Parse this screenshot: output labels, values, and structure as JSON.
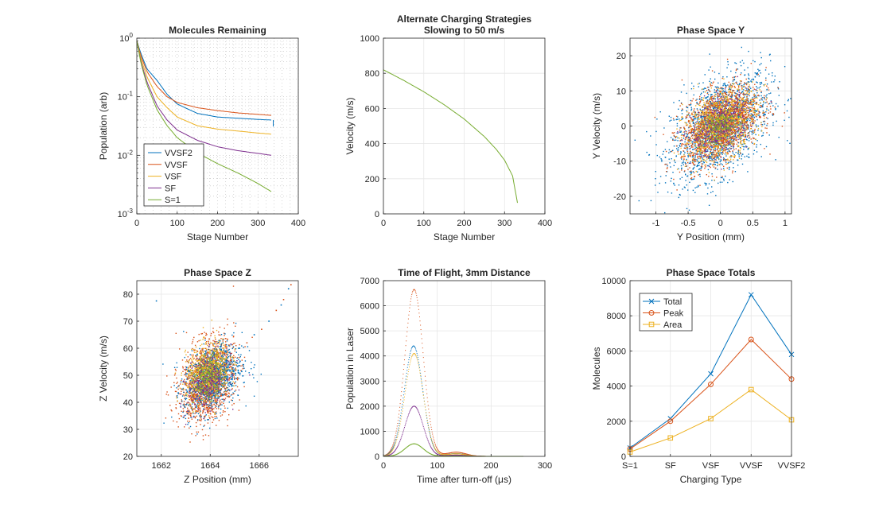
{
  "colors": {
    "c1": "#0072BD",
    "c2": "#D95319",
    "c3": "#EDB120",
    "c4": "#7E2F8E",
    "c5": "#77AC30",
    "axis": "#262626",
    "grid": "#e6e6e6"
  },
  "chart_data": [
    {
      "type": "line",
      "title": "Molecules Remaining",
      "xlabel": "Stage Number",
      "ylabel": "Population (arb)",
      "xlim": [
        0,
        400
      ],
      "ylim": [
        0.001,
        1
      ],
      "yscale": "log",
      "xticks": [
        "0",
        "100",
        "200",
        "300",
        "400"
      ],
      "yticks": [
        "10^-3",
        "10^-2",
        "10^-1",
        "10^0"
      ],
      "grid": "minor-dotted",
      "legend_position": "bottom-left",
      "x": [
        0,
        10,
        25,
        50,
        75,
        100,
        150,
        200,
        250,
        300,
        333
      ],
      "series": [
        {
          "name": "VVSF2",
          "color": "c1",
          "values": [
            0.9,
            0.55,
            0.3,
            0.19,
            0.11,
            0.075,
            0.052,
            0.045,
            0.043,
            0.041,
            0.04
          ]
        },
        {
          "name": "VVSF",
          "color": "c2",
          "values": [
            0.9,
            0.5,
            0.27,
            0.15,
            0.1,
            0.08,
            0.065,
            0.058,
            0.053,
            0.05,
            0.048
          ]
        },
        {
          "name": "VSF",
          "color": "c3",
          "values": [
            0.9,
            0.45,
            0.22,
            0.1,
            0.065,
            0.045,
            0.032,
            0.028,
            0.026,
            0.024,
            0.023
          ]
        },
        {
          "name": "SF",
          "color": "c4",
          "values": [
            0.9,
            0.4,
            0.18,
            0.07,
            0.04,
            0.027,
            0.018,
            0.014,
            0.012,
            0.0108,
            0.01
          ]
        },
        {
          "name": "S=1",
          "color": "c5",
          "values": [
            0.9,
            0.38,
            0.16,
            0.06,
            0.032,
            0.02,
            0.011,
            0.0072,
            0.005,
            0.0033,
            0.0024
          ]
        }
      ]
    },
    {
      "type": "line",
      "title": "Alternate Charging Strategies",
      "subtitle": "Slowing to 50 m/s",
      "xlabel": "Stage Number",
      "ylabel": "Velocity (m/s)",
      "xlim": [
        0,
        400
      ],
      "ylim": [
        0,
        1000
      ],
      "xticks": [
        "0",
        "100",
        "200",
        "300",
        "400"
      ],
      "yticks": [
        "0",
        "200",
        "400",
        "600",
        "800",
        "1000"
      ],
      "grid": "on",
      "x": [
        0,
        50,
        100,
        150,
        200,
        250,
        280,
        300,
        320,
        333
      ],
      "series": [
        {
          "color": "c5",
          "values": [
            820,
            760,
            695,
            622,
            540,
            440,
            366,
            306,
            216,
            50
          ]
        }
      ]
    },
    {
      "type": "scatter",
      "title": "Phase Space Y",
      "xlabel": "Y Position (mm)",
      "ylabel": "Y Velocity (m/s)",
      "xlim": [
        -1.4,
        1.1
      ],
      "ylim": [
        -25,
        25
      ],
      "xticks": [
        "-1",
        "-0.5",
        "0",
        "0.5",
        "1"
      ],
      "yticks": [
        "-20",
        "-10",
        "0",
        "10",
        "20"
      ],
      "grid": "on",
      "clouds": [
        {
          "color": "c1",
          "cx": 0.0,
          "cy": 0.0,
          "sx": 0.38,
          "sy": 7.5,
          "rho": 0.45,
          "n": 1800
        },
        {
          "color": "c2",
          "cx": 0.0,
          "cy": 0.5,
          "sx": 0.3,
          "sy": 5.5,
          "rho": 0.45,
          "n": 1600
        },
        {
          "color": "c3",
          "cx": 0.0,
          "cy": 0.5,
          "sx": 0.28,
          "sy": 5.0,
          "rho": 0.4,
          "n": 1000
        },
        {
          "color": "c4",
          "cx": 0.0,
          "cy": 0.0,
          "sx": 0.22,
          "sy": 4.0,
          "rho": 0.4,
          "n": 450
        },
        {
          "color": "c5",
          "cx": 0.0,
          "cy": 0.0,
          "sx": 0.15,
          "sy": 2.5,
          "rho": 0.4,
          "n": 200
        }
      ]
    },
    {
      "type": "scatter",
      "title": "Phase Space Z",
      "xlabel": "Z Position (mm)",
      "ylabel": "Z Velocity (m/s)",
      "xlim": [
        1661,
        1667.6
      ],
      "ylim": [
        20,
        85
      ],
      "xticks": [
        "1662",
        "1664",
        "1666"
      ],
      "yticks": [
        "20",
        "30",
        "40",
        "50",
        "60",
        "70",
        "80"
      ],
      "grid": "on",
      "clouds": [
        {
          "color": "c2",
          "cx": 1663.9,
          "cy": 48.0,
          "sx": 0.55,
          "sy": 7.5,
          "rho": 0.3,
          "n": 1500
        },
        {
          "color": "c1",
          "cx": 1664.1,
          "cy": 49.0,
          "sx": 0.6,
          "sy": 6.5,
          "rho": 0.35,
          "n": 900
        },
        {
          "color": "c3",
          "cx": 1663.9,
          "cy": 51.0,
          "sx": 0.45,
          "sy": 5.5,
          "rho": 0.3,
          "n": 800
        },
        {
          "color": "c4",
          "cx": 1663.9,
          "cy": 48.0,
          "sx": 0.4,
          "sy": 5.0,
          "rho": 0.3,
          "n": 400
        },
        {
          "color": "c5",
          "cx": 1663.9,
          "cy": 49.0,
          "sx": 0.3,
          "sy": 4.0,
          "rho": 0.3,
          "n": 220
        }
      ]
    },
    {
      "type": "line",
      "title": "Time of Flight, 3mm Distance",
      "xlabel": "Time after turn-off (μs)",
      "ylabel": "Population in Laser",
      "xlim": [
        0,
        300
      ],
      "ylim": [
        0,
        7000
      ],
      "xticks": [
        "0",
        "100",
        "200",
        "300"
      ],
      "yticks": [
        "0",
        "1000",
        "2000",
        "3000",
        "4000",
        "5000",
        "6000",
        "7000"
      ],
      "grid": "on",
      "series": [
        {
          "color": "c2",
          "peak": 6650,
          "center": 57,
          "sigma": 17
        },
        {
          "color": "c1",
          "peak": 4400,
          "center": 56,
          "sigma": 17
        },
        {
          "color": "c3",
          "peak": 4100,
          "center": 57,
          "sigma": 17
        },
        {
          "color": "c4",
          "peak": 2000,
          "center": 57,
          "sigma": 17
        },
        {
          "color": "c5",
          "peak": 500,
          "center": 57,
          "sigma": 17
        }
      ]
    },
    {
      "type": "line",
      "title": "Phase Space Totals",
      "xlabel": "Charging Type",
      "ylabel": "Molecules",
      "categories": [
        "S=1",
        "SF",
        "VSF",
        "VVSF",
        "VVSF2"
      ],
      "ylim": [
        0,
        10000
      ],
      "yticks": [
        "0",
        "2000",
        "4000",
        "6000",
        "8000",
        "10000"
      ],
      "grid": "on",
      "legend_position": "top-left",
      "series": [
        {
          "name": "Total",
          "color": "c1",
          "marker": "x",
          "values": [
            480,
            2150,
            4700,
            9200,
            5800
          ]
        },
        {
          "name": "Peak",
          "color": "c2",
          "marker": "o",
          "values": [
            420,
            2000,
            4100,
            6650,
            4400
          ]
        },
        {
          "name": "Area",
          "color": "c3",
          "marker": "s",
          "values": [
            250,
            1050,
            2150,
            3800,
            2080
          ]
        }
      ]
    }
  ]
}
